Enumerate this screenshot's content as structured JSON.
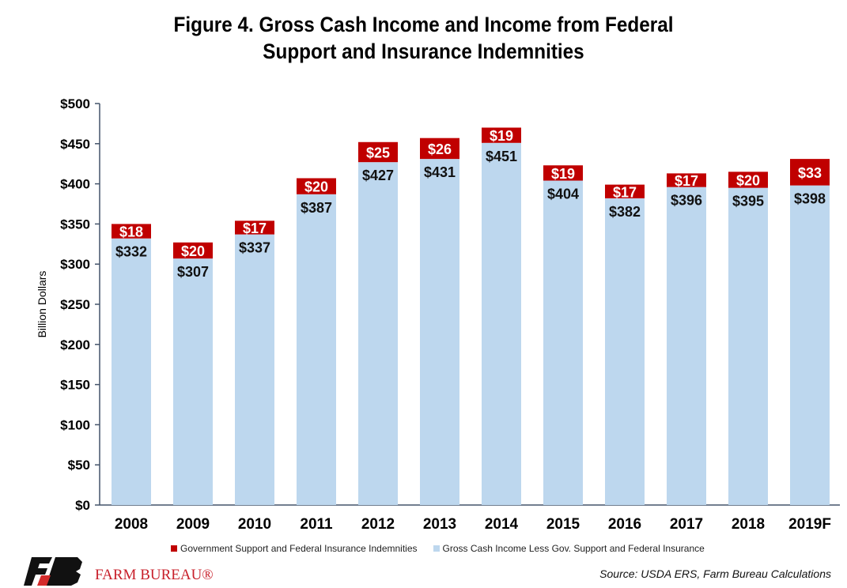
{
  "chart_data": {
    "type": "bar",
    "stacked": true,
    "title_line1": "Figure 4. Gross Cash Income and Income from Federal",
    "title_line2": "Support and Insurance Indemnities",
    "ylabel": "Billion Dollars",
    "xlabel": "",
    "ylim": [
      0,
      500
    ],
    "yticks": [
      0,
      50,
      100,
      150,
      200,
      250,
      300,
      350,
      400,
      450,
      500
    ],
    "ytick_labels": [
      "$0",
      "$50",
      "$100",
      "$150",
      "$200",
      "$250",
      "$300",
      "$350",
      "$400",
      "$450",
      "$500"
    ],
    "categories": [
      "2008",
      "2009",
      "2010",
      "2011",
      "2012",
      "2013",
      "2014",
      "2015",
      "2016",
      "2017",
      "2018",
      "2019F"
    ],
    "series": [
      {
        "name": "Gross Cash Income Less Gov. Support and Federal Insurance",
        "color": "#BDD7EE",
        "values": [
          332,
          307,
          337,
          387,
          427,
          431,
          451,
          404,
          382,
          396,
          395,
          398
        ]
      },
      {
        "name": "Government Support and Federal Insurance Indemnities",
        "color": "#C00000",
        "values": [
          18,
          20,
          17,
          20,
          25,
          26,
          19,
          19,
          17,
          17,
          20,
          33
        ]
      }
    ],
    "grid": false,
    "legend_position": "bottom"
  },
  "source": "Source: USDA ERS, Farm Bureau Calculations",
  "logo": {
    "brand": "FARM BUREAU®"
  }
}
